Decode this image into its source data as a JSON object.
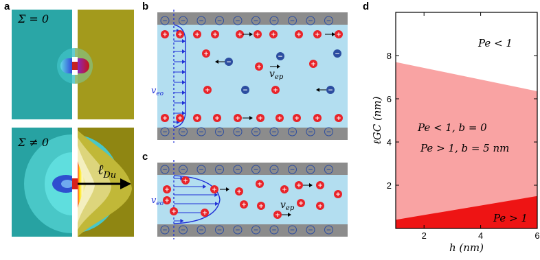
{
  "panels": {
    "a": {
      "label": "a",
      "top_text": "Σ = 0",
      "bottom_text": "Σ ≠ 0",
      "arrow_label": "ℓ",
      "arrow_label_sub": "Du",
      "colors": {
        "teal": "#2aa6a6",
        "olive": "#a39a1c",
        "olive_bright": "#cfc43a"
      }
    },
    "b": {
      "label": "b",
      "veo_label": "v",
      "veo_sub": "eo",
      "vep_label": "v",
      "vep_sub": "ep"
    },
    "c": {
      "label": "c",
      "veo_label": "v",
      "veo_sub": "eo",
      "vep_label": "v",
      "vep_sub": "ep"
    },
    "d": {
      "label": "d"
    }
  },
  "ion_symbols": {
    "plus": "+",
    "minus": "−"
  },
  "colors": {
    "channel_fluid": "#b3def0",
    "wall": "#8c8c8c",
    "cation": "#e8242a",
    "anion": "#2c4da0",
    "flow": "#1f2fd6",
    "region_light": "#f9a3a3",
    "region_dark": "#ee1414"
  },
  "chart_data": {
    "type": "area",
    "xlabel": "h (nm)",
    "ylabel": "ℓGC (nm)",
    "xlim": [
      1,
      6
    ],
    "ylim": [
      0,
      10
    ],
    "xticks": [
      "2",
      "4",
      "6"
    ],
    "yticks": [
      "2",
      "4",
      "6",
      "8"
    ],
    "series": [
      {
        "name": "Pe < 1, b = 0 ; Pe > 1, b = 5 nm",
        "x": [
          1,
          6
        ],
        "y": [
          7.7,
          6.35
        ]
      },
      {
        "name": "Pe > 1",
        "x": [
          1,
          6
        ],
        "y": [
          0.4,
          1.5
        ]
      }
    ],
    "annotations": [
      "Pe < 1",
      "Pe < 1, b = 0",
      "Pe > 1, b = 5 nm",
      "Pe > 1"
    ]
  }
}
